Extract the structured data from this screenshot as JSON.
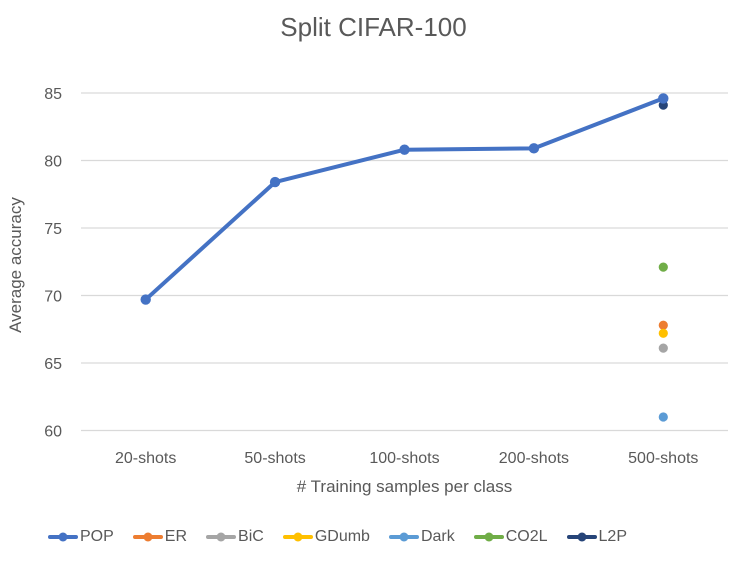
{
  "chart_data": {
    "type": "line",
    "title": "Split CIFAR-100",
    "xlabel": "# Training samples per class",
    "ylabel": "Average accuracy",
    "categories": [
      "20-shots",
      "50-shots",
      "100-shots",
      "200-shots",
      "500-shots"
    ],
    "yticks": [
      60,
      65,
      70,
      75,
      80,
      85
    ],
    "ylim": [
      60,
      85
    ],
    "grid": "horizontal",
    "legend_position": "bottom",
    "series": [
      {
        "name": "POP",
        "color": "#4472C4",
        "type": "line",
        "values": [
          69.7,
          78.4,
          80.8,
          80.9,
          84.6
        ]
      },
      {
        "name": "ER",
        "color": "#ED7D31",
        "type": "scatter",
        "points": [
          {
            "category": "500-shots",
            "value": 67.8
          }
        ]
      },
      {
        "name": "BiC",
        "color": "#A5A5A5",
        "type": "scatter",
        "points": [
          {
            "category": "500-shots",
            "value": 66.1
          }
        ]
      },
      {
        "name": "GDumb",
        "color": "#FFC000",
        "type": "scatter",
        "points": [
          {
            "category": "500-shots",
            "value": 67.2
          }
        ]
      },
      {
        "name": "Dark",
        "color": "#5B9BD5",
        "type": "scatter",
        "points": [
          {
            "category": "500-shots",
            "value": 61.0
          }
        ]
      },
      {
        "name": "CO2L",
        "color": "#70AD47",
        "type": "scatter",
        "points": [
          {
            "category": "500-shots",
            "value": 72.1
          }
        ]
      },
      {
        "name": "L2P",
        "color": "#264478",
        "type": "scatter",
        "points": [
          {
            "category": "500-shots",
            "value": 84.1
          }
        ]
      }
    ],
    "colors": {
      "gridline": "#D9D9D9",
      "axis_text": "#595959",
      "title_text": "#595959",
      "background": "#FFFFFF"
    }
  }
}
